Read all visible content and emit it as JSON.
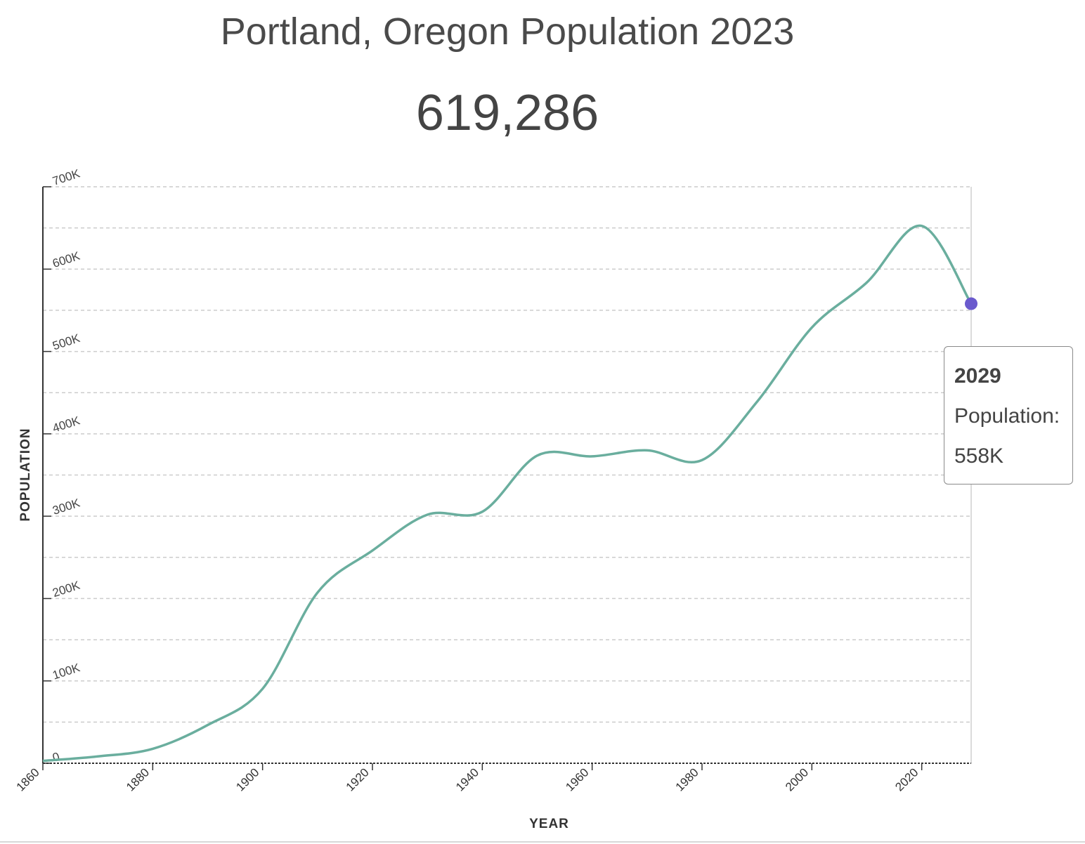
{
  "header": {
    "title": "Portland, Oregon Population 2023",
    "current_population": "619,286"
  },
  "tooltip": {
    "year": "2029",
    "label": "Population:",
    "value": "558K"
  },
  "colors": {
    "line": "#6aae9e",
    "marker": "#6a5acd",
    "grid": "#cccccc",
    "axis": "#333333",
    "text": "#444444"
  },
  "chart_data": {
    "type": "line",
    "title": "Portland, Oregon Population 2023",
    "xlabel": "YEAR",
    "ylabel": "POPULATION",
    "xlim": [
      1860,
      2029
    ],
    "ylim": [
      0,
      700000
    ],
    "x_ticks": [
      1860,
      1880,
      1900,
      1920,
      1940,
      1960,
      1980,
      2000,
      2020
    ],
    "x_tick_labels": [
      "1860",
      "1880",
      "1900",
      "1920",
      "1940",
      "1960",
      "1980",
      "2000",
      "2020"
    ],
    "y_ticks": [
      0,
      100000,
      200000,
      300000,
      400000,
      500000,
      600000,
      700000
    ],
    "y_tick_labels": [
      "0",
      "100K",
      "200K",
      "300K",
      "400K",
      "500K",
      "600K",
      "700K"
    ],
    "y_minor_gridlines": [
      50000,
      150000,
      250000,
      350000,
      450000,
      550000,
      650000
    ],
    "grid": true,
    "series": [
      {
        "name": "Population",
        "x": [
          1860,
          1870,
          1880,
          1890,
          1900,
          1910,
          1920,
          1930,
          1940,
          1950,
          1960,
          1970,
          1980,
          1990,
          2000,
          2010,
          2020,
          2029
        ],
        "values": [
          2874,
          8293,
          17577,
          46385,
          90426,
          207214,
          258288,
          301815,
          305394,
          373628,
          372676,
          379967,
          368148,
          438802,
          529121,
          583776,
          652503,
          558000
        ]
      }
    ],
    "highlight": {
      "x": 2029,
      "y": 558000
    }
  }
}
